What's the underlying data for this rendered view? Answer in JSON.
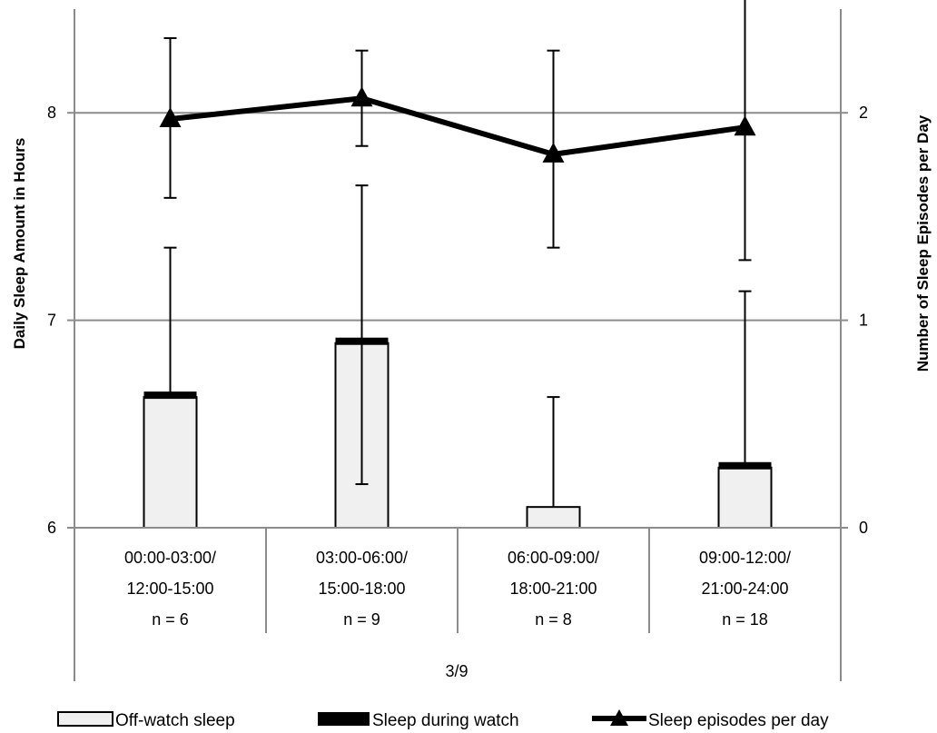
{
  "chart_data": {
    "type": "bar",
    "group_label": "3/9",
    "categories": [
      {
        "line1": "00:00-03:00/",
        "line2": "12:00-15:00",
        "n": "n = 6"
      },
      {
        "line1": "03:00-06:00/",
        "line2": "15:00-18:00",
        "n": "n = 9"
      },
      {
        "line1": "06:00-09:00/",
        "line2": "18:00-21:00",
        "n": "n = 8"
      },
      {
        "line1": "09:00-12:00/",
        "line2": "21:00-24:00",
        "n": "n = 18"
      }
    ],
    "y_left": {
      "label": "Daily Sleep Amount in Hours",
      "min": 6,
      "max": 8.5,
      "ticks": [
        6,
        7,
        8
      ]
    },
    "y_right": {
      "label": "Number of Sleep Episodes per Day",
      "min": 0,
      "max": 2.5,
      "ticks": [
        0,
        1,
        2
      ]
    },
    "grid": true,
    "legend_position": "bottom",
    "series": [
      {
        "name": "Off-watch sleep",
        "kind": "bar-segment",
        "axis": "left",
        "values": [
          6.63,
          6.89,
          6.1,
          6.29
        ],
        "color": "#f0f0f0"
      },
      {
        "name": "Sleep during watch",
        "kind": "bar-segment",
        "axis": "left",
        "values": [
          0.02,
          0.03,
          0.0,
          0.02
        ],
        "color": "#000000"
      },
      {
        "name": "Sleep episodes per day",
        "kind": "line",
        "axis": "right",
        "values": [
          1.97,
          2.07,
          1.8,
          1.93
        ],
        "error_low": [
          1.59,
          1.84,
          1.35,
          1.29
        ],
        "error_high": [
          2.36,
          2.3,
          2.3,
          2.6
        ],
        "color": "#000000"
      }
    ],
    "bar_error_high": [
      7.35,
      7.65,
      6.63,
      7.14
    ],
    "bar_error_low": [
      null,
      6.21,
      null,
      null
    ]
  }
}
